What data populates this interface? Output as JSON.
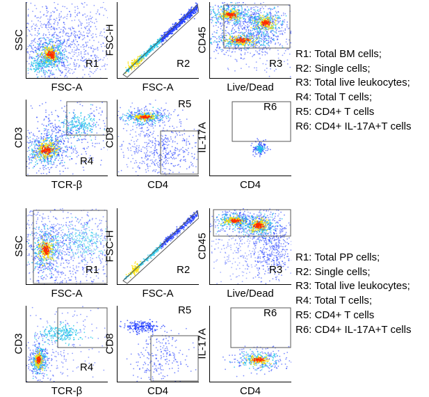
{
  "panels": [
    {
      "id": "bm",
      "plots": [
        {
          "x": "FSC-A",
          "y": "SSC",
          "gate": "R1",
          "kind": "scatter-ssc"
        },
        {
          "x": "FSC-A",
          "y": "FSC-H",
          "gate": "R2",
          "kind": "single"
        },
        {
          "x": "Live/Dead",
          "y": "CD45",
          "gate": "R3",
          "kind": "live-bm"
        },
        {
          "x": "TCR-β",
          "y": "CD3",
          "gate": "R4",
          "kind": "tcr-bm"
        },
        {
          "x": "CD4",
          "y": "CD8",
          "gate": "R5",
          "kind": "cd4-bm"
        },
        {
          "x": "CD4",
          "y": "IL-17A",
          "gate": "R6",
          "kind": "il17-bm"
        }
      ],
      "legend": [
        "R1: Total BM cells;",
        "R2: Single cells;",
        "R3: Total live leukocytes;",
        "R4: Total T cells;",
        "R5: CD4+ T cells",
        "R6: CD4+ IL-17A+T cells"
      ]
    },
    {
      "id": "pp",
      "plots": [
        {
          "x": "FSC-A",
          "y": "SSC",
          "gate": "R1",
          "kind": "scatter-ssc-pp"
        },
        {
          "x": "FSC-A",
          "y": "FSC-H",
          "gate": "R2",
          "kind": "single-pp"
        },
        {
          "x": "Live/Dead",
          "y": "CD45",
          "gate": "R3",
          "kind": "live-pp"
        },
        {
          "x": "TCR-β",
          "y": "CD3",
          "gate": "R4",
          "kind": "tcr-pp"
        },
        {
          "x": "CD4",
          "y": "CD8",
          "gate": "R5",
          "kind": "cd4-pp"
        },
        {
          "x": "CD4",
          "y": "IL-17A",
          "gate": "R6",
          "kind": "il17-pp"
        }
      ],
      "legend": [
        "R1: Total PP cells;",
        "R2: Single cells;",
        "R3: Total live leukocytes;",
        "R4: Total T cells;",
        "R5: CD4+ T cells",
        "R6: CD4+ IL-17A+T cells"
      ]
    }
  ],
  "colors": {
    "low": "#1f3cff",
    "mid": "#22c7e8",
    "high": "#ffe000",
    "peak": "#ff2a00",
    "gate": "#555555"
  }
}
